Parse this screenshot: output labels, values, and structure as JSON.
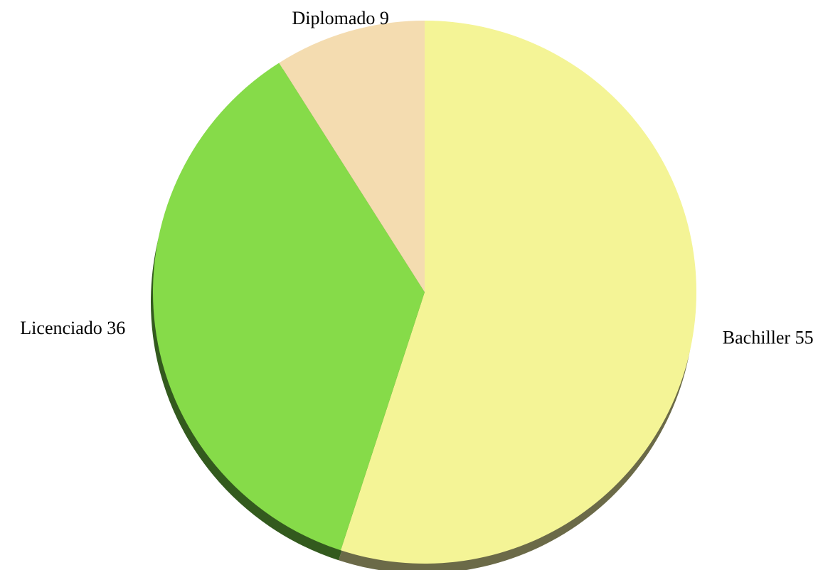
{
  "chart_data": {
    "type": "pie",
    "title": "",
    "slices": [
      {
        "label": "Bachiller",
        "value": 55,
        "color": "#F4F496",
        "shadow": "#6B6A48"
      },
      {
        "label": "Licenciado",
        "value": 36,
        "color": "#86DB49",
        "shadow": "#335A1E"
      },
      {
        "label": "Diplomado",
        "value": 9,
        "color": "#F4DCB0",
        "shadow": "#7A6E58"
      }
    ],
    "start_angle": "12 o'clock",
    "direction": "clockwise",
    "style": "3d-shadow",
    "legend": "none",
    "label_format": "{label} {value}"
  }
}
